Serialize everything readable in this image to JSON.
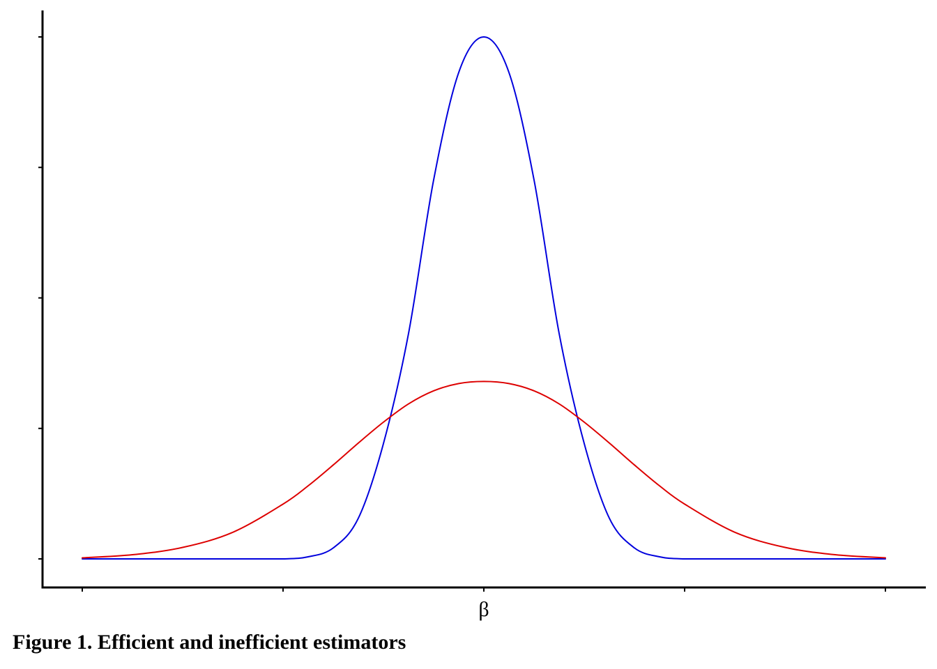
{
  "caption": "Figure 1. Efficient and inefficient estimators",
  "chart_data": {
    "type": "line",
    "title": "",
    "xlabel": "",
    "ylabel": "",
    "x_tick_labels": [
      "",
      "",
      "β",
      "",
      ""
    ],
    "y_tick_count": 5,
    "xlim": [
      -4,
      4
    ],
    "ylim": [
      0,
      1
    ],
    "grid": false,
    "legend": "none",
    "series": [
      {
        "color": "#0000dd",
        "x": [
          -4,
          -3.5,
          -3,
          -2.5,
          -2,
          -1.75,
          -1.5,
          -1.25,
          -1,
          -0.75,
          -0.5,
          -0.25,
          0,
          0.25,
          0.5,
          0.75,
          1,
          1.25,
          1.5,
          1.75,
          2,
          2.5,
          3,
          3.5,
          4
        ],
        "values": [
          0,
          0,
          0,
          0,
          0,
          0.004,
          0.021,
          0.078,
          0.221,
          0.432,
          0.726,
          0.932,
          1.0,
          0.932,
          0.726,
          0.432,
          0.221,
          0.078,
          0.021,
          0.004,
          0,
          0,
          0,
          0,
          0
        ]
      },
      {
        "color": "#dd0000",
        "x": [
          -4,
          -3.5,
          -3,
          -2.5,
          -2,
          -1.75,
          -1.5,
          -1.25,
          -1,
          -0.75,
          -0.5,
          -0.25,
          0,
          0.25,
          0.5,
          0.75,
          1,
          1.25,
          1.5,
          1.75,
          2,
          2.5,
          3,
          3.5,
          4
        ],
        "values": [
          0.002,
          0.008,
          0.022,
          0.051,
          0.105,
          0.14,
          0.18,
          0.222,
          0.262,
          0.297,
          0.322,
          0.336,
          0.34,
          0.336,
          0.322,
          0.297,
          0.262,
          0.222,
          0.18,
          0.14,
          0.105,
          0.051,
          0.022,
          0.008,
          0.002
        ]
      }
    ]
  }
}
